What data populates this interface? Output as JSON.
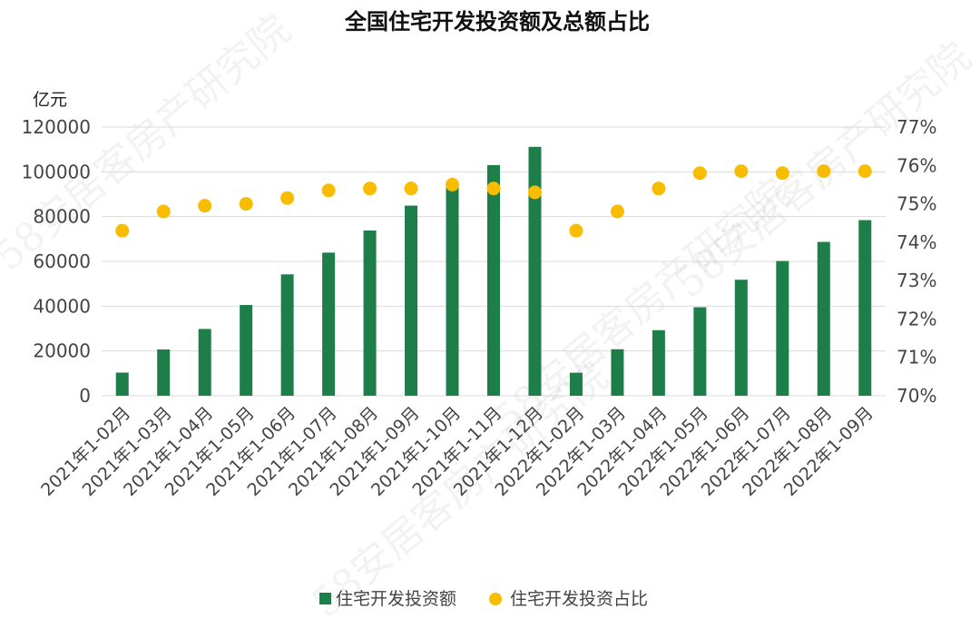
{
  "chart_data": {
    "type": "bar",
    "title": "全国住宅开发投资额及总额占比",
    "left_axis_unit": "亿元",
    "categories": [
      "2021年1-02月",
      "2021年1-03月",
      "2021年1-04月",
      "2021年1-05月",
      "2021年1-06月",
      "2021年1-07月",
      "2021年1-08月",
      "2021年1-09月",
      "2021年1-10月",
      "2021年1-11月",
      "2021年1-12月",
      "2022年1-02月",
      "2022年1-03月",
      "2022年1-04月",
      "2022年1-05月",
      "2022年1-06月",
      "2022年1-07月",
      "2022年1-08月",
      "2022年1-09月"
    ],
    "series": [
      {
        "name": "住宅开发投资额",
        "type": "bar",
        "axis": "left",
        "color": "#1e7e4a",
        "values": [
          10340,
          20660,
          29820,
          40520,
          54200,
          63920,
          73800,
          84920,
          94010,
          103020,
          111170,
          10270,
          20760,
          29280,
          39520,
          51800,
          60180,
          68700,
          78440
        ]
      },
      {
        "name": "住宅开发投资占比",
        "type": "scatter",
        "axis": "right",
        "color": "#f8bc00",
        "values": [
          74.3,
          74.8,
          74.95,
          75.0,
          75.15,
          75.35,
          75.4,
          75.4,
          75.5,
          75.4,
          75.3,
          74.3,
          74.8,
          75.4,
          75.8,
          75.85,
          75.8,
          75.85,
          75.85
        ]
      }
    ],
    "left_axis": {
      "min": 0,
      "max": 120000,
      "ticks": [
        "0",
        "20000",
        "40000",
        "60000",
        "80000",
        "100000",
        "120000"
      ]
    },
    "right_axis": {
      "min": 70,
      "max": 77,
      "ticks": [
        "70%",
        "71%",
        "72%",
        "73%",
        "74%",
        "75%",
        "76%",
        "77%"
      ]
    },
    "grid": true,
    "legend_position": "bottom"
  },
  "watermark": "58安居客房产研究院"
}
